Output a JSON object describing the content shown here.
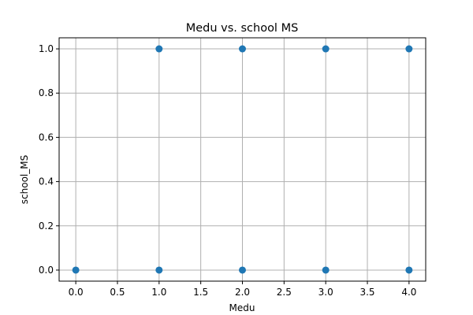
{
  "chart_data": {
    "type": "scatter",
    "title": "Medu vs. school MS",
    "xlabel": "Medu",
    "ylabel": "school_MS",
    "xlim": [
      -0.2,
      4.2
    ],
    "ylim": [
      -0.05,
      1.05
    ],
    "xticks": [
      0.0,
      0.5,
      1.0,
      1.5,
      2.0,
      2.5,
      3.0,
      3.5,
      4.0
    ],
    "xtick_labels": [
      "0.0",
      "0.5",
      "1.0",
      "1.5",
      "2.0",
      "2.5",
      "3.0",
      "3.5",
      "4.0"
    ],
    "yticks": [
      0.0,
      0.2,
      0.4,
      0.6,
      0.8,
      1.0
    ],
    "ytick_labels": [
      "0.0",
      "0.2",
      "0.4",
      "0.6",
      "0.8",
      "1.0"
    ],
    "grid": true,
    "point_color": "#1f77b4",
    "grid_color": "#b0b0b0",
    "series": [
      {
        "x": [
          0,
          1,
          2,
          3,
          4,
          1,
          2,
          3,
          4
        ],
        "y": [
          0,
          0,
          0,
          0,
          0,
          1,
          1,
          1,
          1
        ]
      }
    ]
  }
}
